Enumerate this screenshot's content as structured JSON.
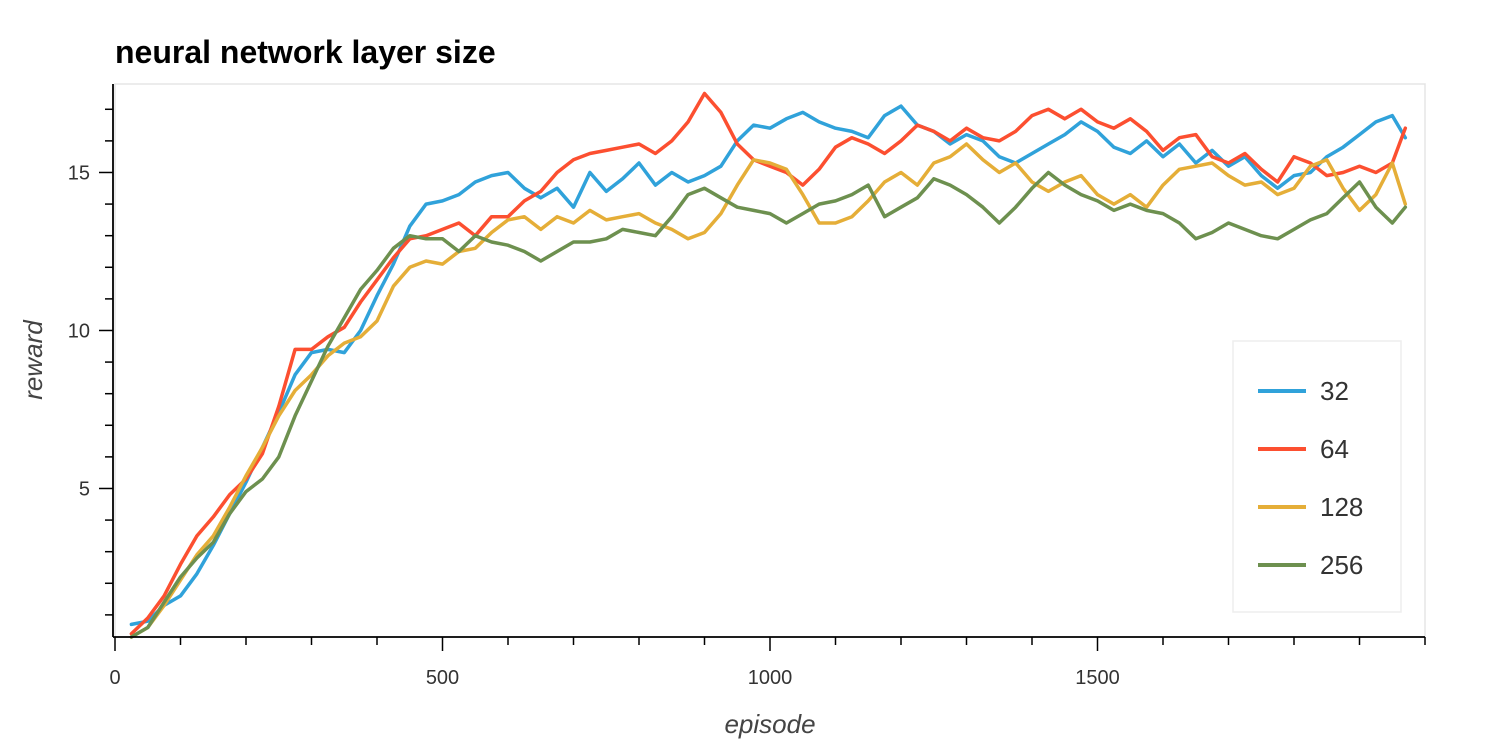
{
  "chart_data": {
    "type": "line",
    "title": "neural network layer size",
    "xlabel": "episode",
    "ylabel": "reward",
    "xlim": [
      0,
      2000
    ],
    "ylim": [
      0.3,
      17.8
    ],
    "x_ticks": [
      0,
      500,
      1000,
      1500
    ],
    "y_ticks": [
      5,
      10,
      15
    ],
    "x_minor_step": 100,
    "y_minor_step": 1,
    "grid": false,
    "legend_position": "bottom-right",
    "series": [
      {
        "name": "32",
        "color": "#30a2da",
        "x": [
          25,
          50,
          75,
          100,
          125,
          150,
          175,
          200,
          225,
          250,
          275,
          300,
          325,
          350,
          375,
          400,
          425,
          450,
          475,
          500,
          525,
          550,
          575,
          600,
          625,
          650,
          675,
          700,
          725,
          750,
          775,
          800,
          825,
          850,
          875,
          900,
          925,
          950,
          975,
          1000,
          1025,
          1050,
          1075,
          1100,
          1125,
          1150,
          1175,
          1200,
          1225,
          1250,
          1275,
          1300,
          1325,
          1350,
          1375,
          1400,
          1425,
          1450,
          1475,
          1500,
          1525,
          1550,
          1575,
          1600,
          1625,
          1650,
          1675,
          1700,
          1725,
          1750,
          1775,
          1800,
          1825,
          1850,
          1875,
          1900,
          1925,
          1950,
          1970
        ],
        "y": [
          0.7,
          0.8,
          1.3,
          1.6,
          2.3,
          3.2,
          4.2,
          5.2,
          6.3,
          7.4,
          8.6,
          9.3,
          9.4,
          9.3,
          10.0,
          11.1,
          12.1,
          13.3,
          14.0,
          14.1,
          14.3,
          14.7,
          14.9,
          15.0,
          14.5,
          14.2,
          14.5,
          13.9,
          15.0,
          14.4,
          14.8,
          15.3,
          14.6,
          15.0,
          14.7,
          14.9,
          15.2,
          16.0,
          16.5,
          16.4,
          16.7,
          16.9,
          16.6,
          16.4,
          16.3,
          16.1,
          16.8,
          17.1,
          16.5,
          16.3,
          15.9,
          16.2,
          16.0,
          15.5,
          15.3,
          15.6,
          15.9,
          16.2,
          16.6,
          16.3,
          15.8,
          15.6,
          16.0,
          15.5,
          15.9,
          15.3,
          15.7,
          15.2,
          15.5,
          14.9,
          14.5,
          14.9,
          15.0,
          15.5,
          15.8,
          16.2,
          16.6,
          16.8,
          16.1
        ]
      },
      {
        "name": "64",
        "color": "#fc4f30",
        "x": [
          25,
          50,
          75,
          100,
          125,
          150,
          175,
          200,
          225,
          250,
          275,
          300,
          325,
          350,
          375,
          400,
          425,
          450,
          475,
          500,
          525,
          550,
          575,
          600,
          625,
          650,
          675,
          700,
          725,
          750,
          775,
          800,
          825,
          850,
          875,
          900,
          925,
          950,
          975,
          1000,
          1025,
          1050,
          1075,
          1100,
          1125,
          1150,
          1175,
          1200,
          1225,
          1250,
          1275,
          1300,
          1325,
          1350,
          1375,
          1400,
          1425,
          1450,
          1475,
          1500,
          1525,
          1550,
          1575,
          1600,
          1625,
          1650,
          1675,
          1700,
          1725,
          1750,
          1775,
          1800,
          1825,
          1850,
          1875,
          1900,
          1925,
          1950,
          1970
        ],
        "y": [
          0.4,
          0.9,
          1.6,
          2.6,
          3.5,
          4.1,
          4.8,
          5.3,
          6.1,
          7.6,
          9.4,
          9.4,
          9.8,
          10.1,
          10.9,
          11.6,
          12.3,
          12.9,
          13.0,
          13.2,
          13.4,
          13.0,
          13.6,
          13.6,
          14.1,
          14.4,
          15.0,
          15.4,
          15.6,
          15.7,
          15.8,
          15.9,
          15.6,
          16.0,
          16.6,
          17.5,
          16.9,
          15.9,
          15.4,
          15.2,
          15.0,
          14.6,
          15.1,
          15.8,
          16.1,
          15.9,
          15.6,
          16.0,
          16.5,
          16.3,
          16.0,
          16.4,
          16.1,
          16.0,
          16.3,
          16.8,
          17.0,
          16.7,
          17.0,
          16.6,
          16.4,
          16.7,
          16.3,
          15.7,
          16.1,
          16.2,
          15.5,
          15.3,
          15.6,
          15.1,
          14.7,
          15.5,
          15.3,
          14.9,
          15.0,
          15.2,
          15.0,
          15.3,
          16.4
        ]
      },
      {
        "name": "128",
        "color": "#e5ae38",
        "x": [
          25,
          50,
          75,
          100,
          125,
          150,
          175,
          200,
          225,
          250,
          275,
          300,
          325,
          350,
          375,
          400,
          425,
          450,
          475,
          500,
          525,
          550,
          575,
          600,
          625,
          650,
          675,
          700,
          725,
          750,
          775,
          800,
          825,
          850,
          875,
          900,
          925,
          950,
          975,
          1000,
          1025,
          1050,
          1075,
          1100,
          1125,
          1150,
          1175,
          1200,
          1225,
          1250,
          1275,
          1300,
          1325,
          1350,
          1375,
          1400,
          1425,
          1450,
          1475,
          1500,
          1525,
          1550,
          1575,
          1600,
          1625,
          1650,
          1675,
          1700,
          1725,
          1750,
          1775,
          1800,
          1825,
          1850,
          1875,
          1900,
          1925,
          1950,
          1970
        ],
        "y": [
          0.3,
          0.6,
          1.3,
          2.1,
          2.9,
          3.5,
          4.4,
          5.4,
          6.3,
          7.3,
          8.1,
          8.6,
          9.2,
          9.6,
          9.8,
          10.3,
          11.4,
          12.0,
          12.2,
          12.1,
          12.5,
          12.6,
          13.1,
          13.5,
          13.6,
          13.2,
          13.6,
          13.4,
          13.8,
          13.5,
          13.6,
          13.7,
          13.4,
          13.2,
          12.9,
          13.1,
          13.7,
          14.6,
          15.4,
          15.3,
          15.1,
          14.3,
          13.4,
          13.4,
          13.6,
          14.1,
          14.7,
          15.0,
          14.6,
          15.3,
          15.5,
          15.9,
          15.4,
          15.0,
          15.3,
          14.7,
          14.4,
          14.7,
          14.9,
          14.3,
          14.0,
          14.3,
          13.9,
          14.6,
          15.1,
          15.2,
          15.3,
          14.9,
          14.6,
          14.7,
          14.3,
          14.5,
          15.2,
          15.4,
          14.5,
          13.8,
          14.3,
          15.3,
          14.0
        ]
      },
      {
        "name": "256",
        "color": "#6d904f",
        "x": [
          25,
          50,
          75,
          100,
          125,
          150,
          175,
          200,
          225,
          250,
          275,
          300,
          325,
          350,
          375,
          400,
          425,
          450,
          475,
          500,
          525,
          550,
          575,
          600,
          625,
          650,
          675,
          700,
          725,
          750,
          775,
          800,
          825,
          850,
          875,
          900,
          925,
          950,
          975,
          1000,
          1025,
          1050,
          1075,
          1100,
          1125,
          1150,
          1175,
          1200,
          1225,
          1250,
          1275,
          1300,
          1325,
          1350,
          1375,
          1400,
          1425,
          1450,
          1475,
          1500,
          1525,
          1550,
          1575,
          1600,
          1625,
          1650,
          1675,
          1700,
          1725,
          1750,
          1775,
          1800,
          1825,
          1850,
          1875,
          1900,
          1925,
          1950,
          1970
        ],
        "y": [
          0.3,
          0.6,
          1.4,
          2.2,
          2.8,
          3.3,
          4.2,
          4.9,
          5.3,
          6.0,
          7.3,
          8.4,
          9.5,
          10.4,
          11.3,
          11.9,
          12.6,
          13.0,
          12.9,
          12.9,
          12.5,
          13.0,
          12.8,
          12.7,
          12.5,
          12.2,
          12.5,
          12.8,
          12.8,
          12.9,
          13.2,
          13.1,
          13.0,
          13.6,
          14.3,
          14.5,
          14.2,
          13.9,
          13.8,
          13.7,
          13.4,
          13.7,
          14.0,
          14.1,
          14.3,
          14.6,
          13.6,
          13.9,
          14.2,
          14.8,
          14.6,
          14.3,
          13.9,
          13.4,
          13.9,
          14.5,
          15.0,
          14.6,
          14.3,
          14.1,
          13.8,
          14.0,
          13.8,
          13.7,
          13.4,
          12.9,
          13.1,
          13.4,
          13.2,
          13.0,
          12.9,
          13.2,
          13.5,
          13.7,
          14.2,
          14.7,
          13.9,
          13.4,
          13.9
        ]
      }
    ]
  }
}
